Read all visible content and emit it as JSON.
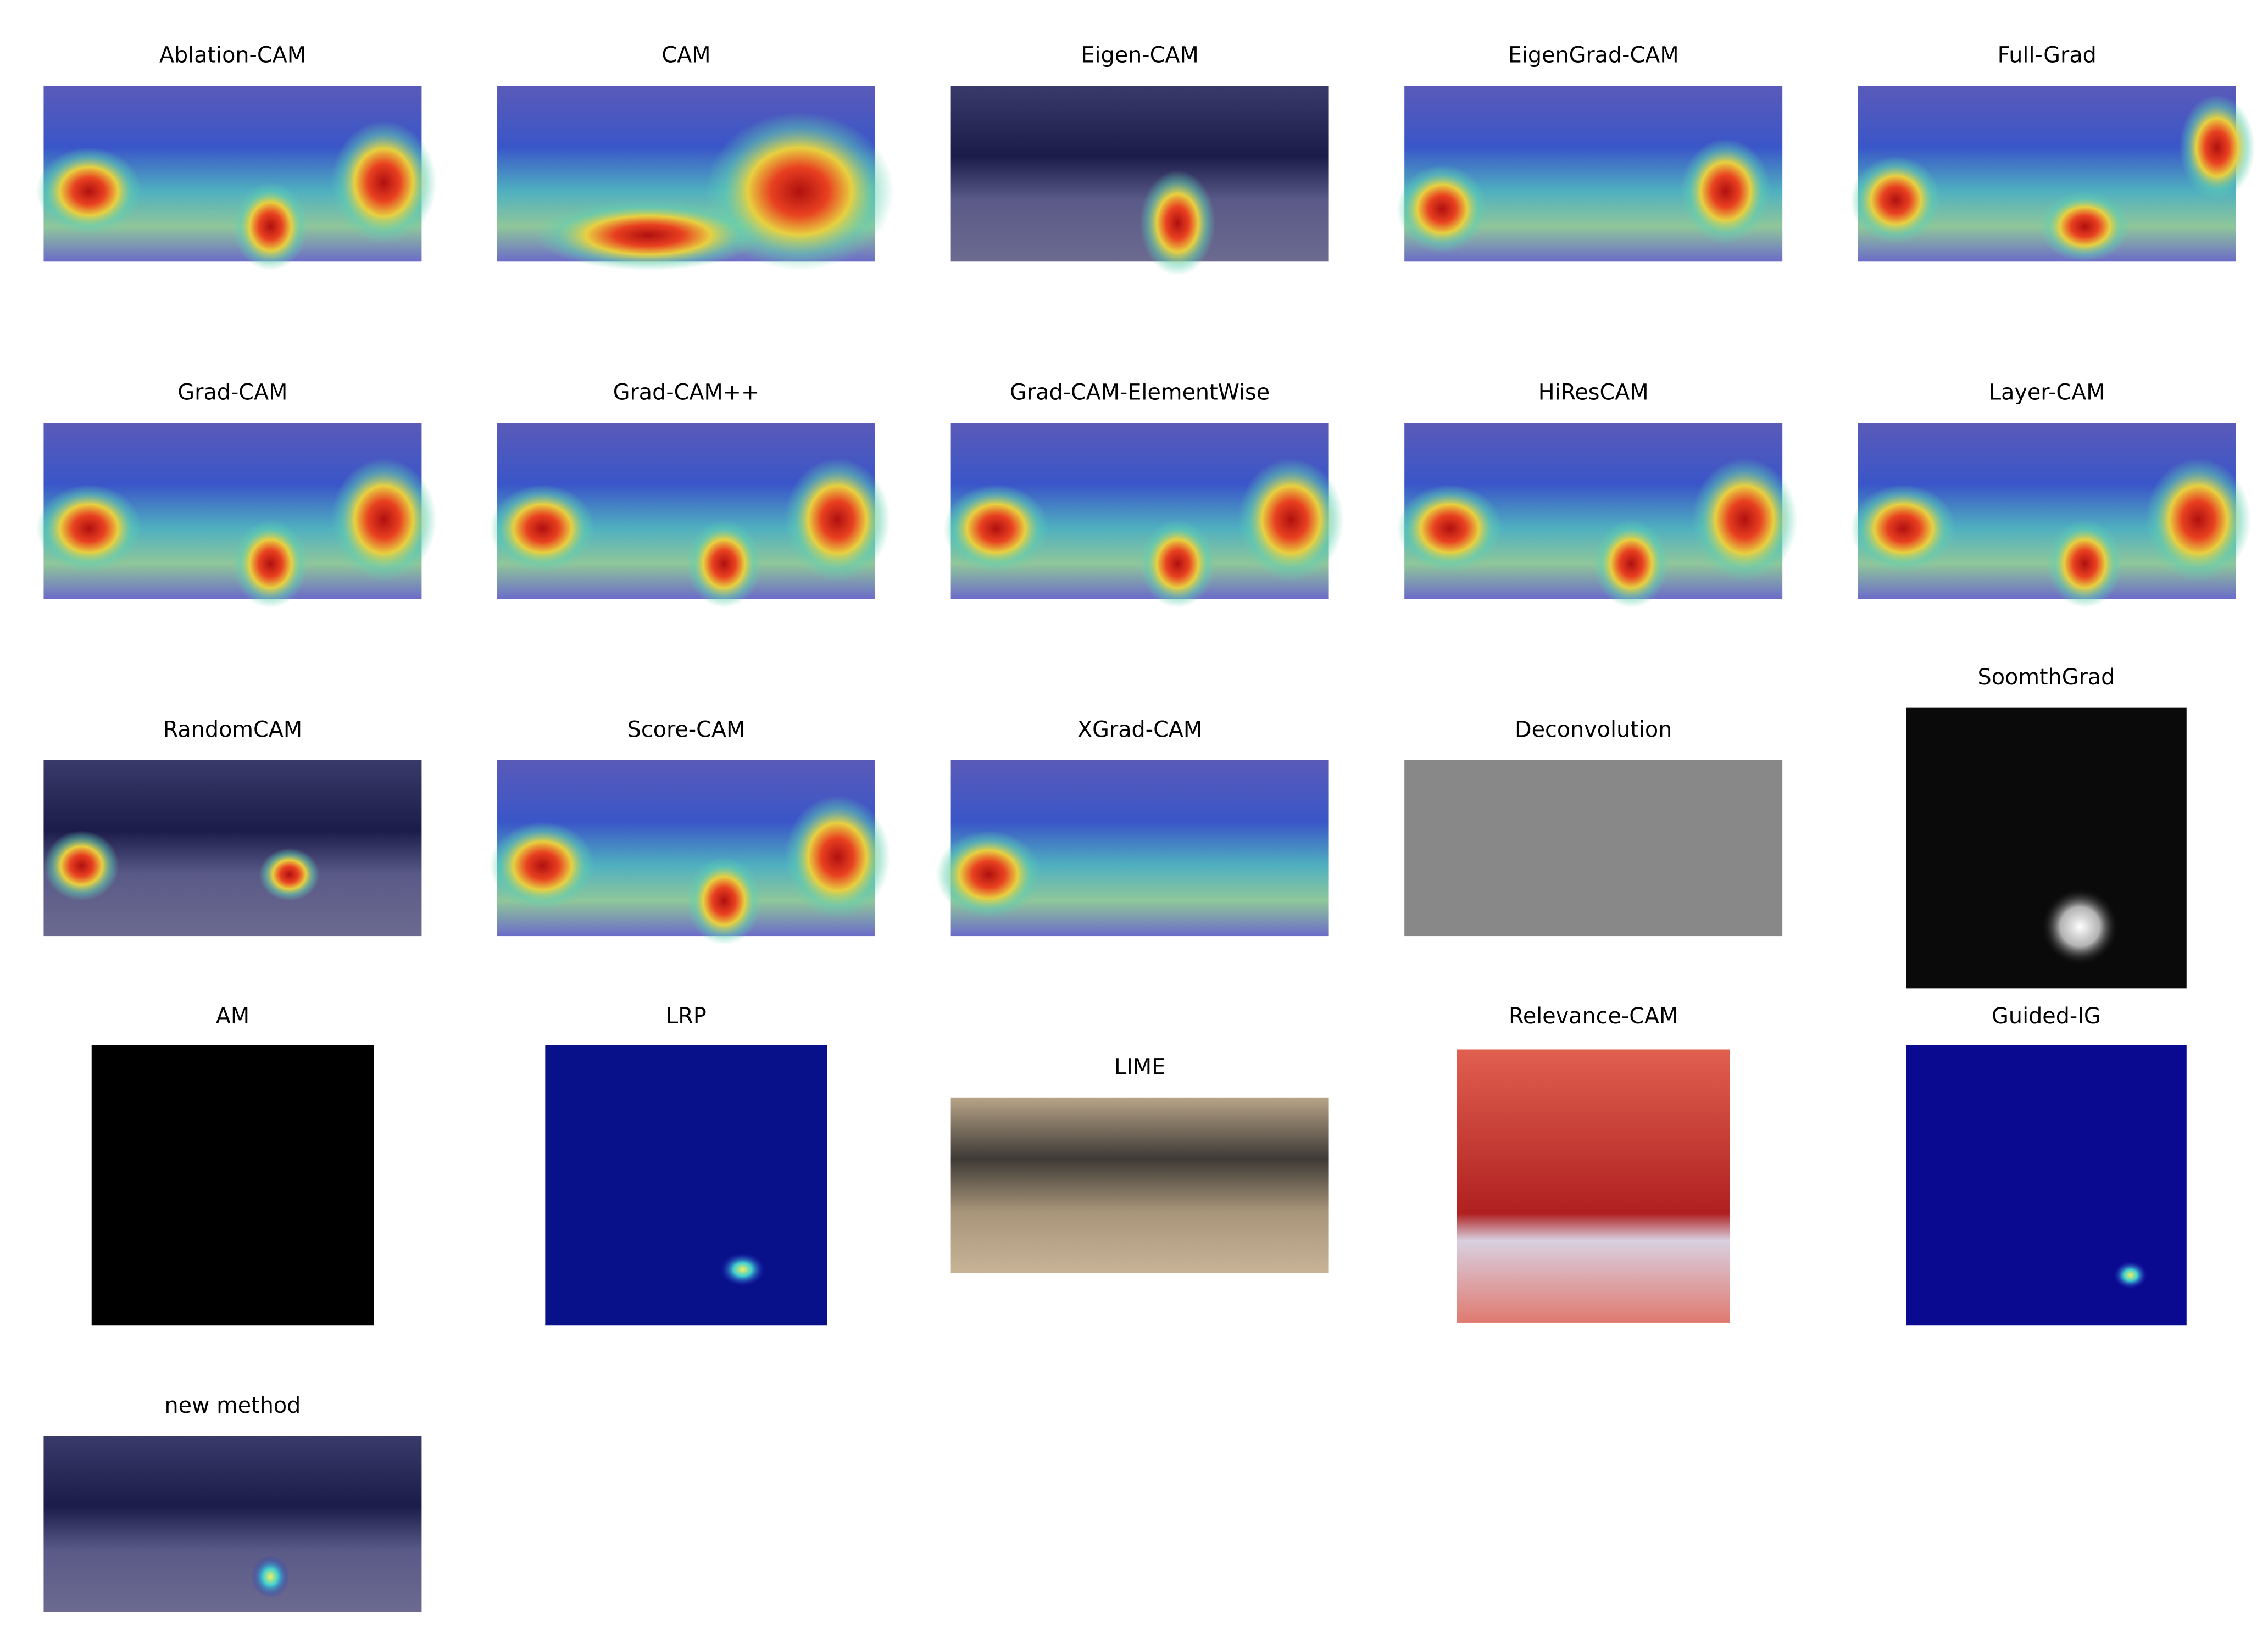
{
  "panels": [
    "Ablation-CAM",
    "CAM",
    "Eigen-CAM",
    "EigenGrad-CAM",
    "Full-Grad",
    "Grad-CAM",
    "Grad-CAM++",
    "Grad-CAM-ElementWise",
    "HiResCAM",
    "Layer-CAM",
    "RandomCAM",
    "Score-CAM",
    "XGrad-CAM",
    "Deconvolution",
    "SoomthGrad",
    "AM",
    "LRP",
    "LIME",
    "Relevance-CAM",
    "Guided-IG",
    "new method"
  ]
}
